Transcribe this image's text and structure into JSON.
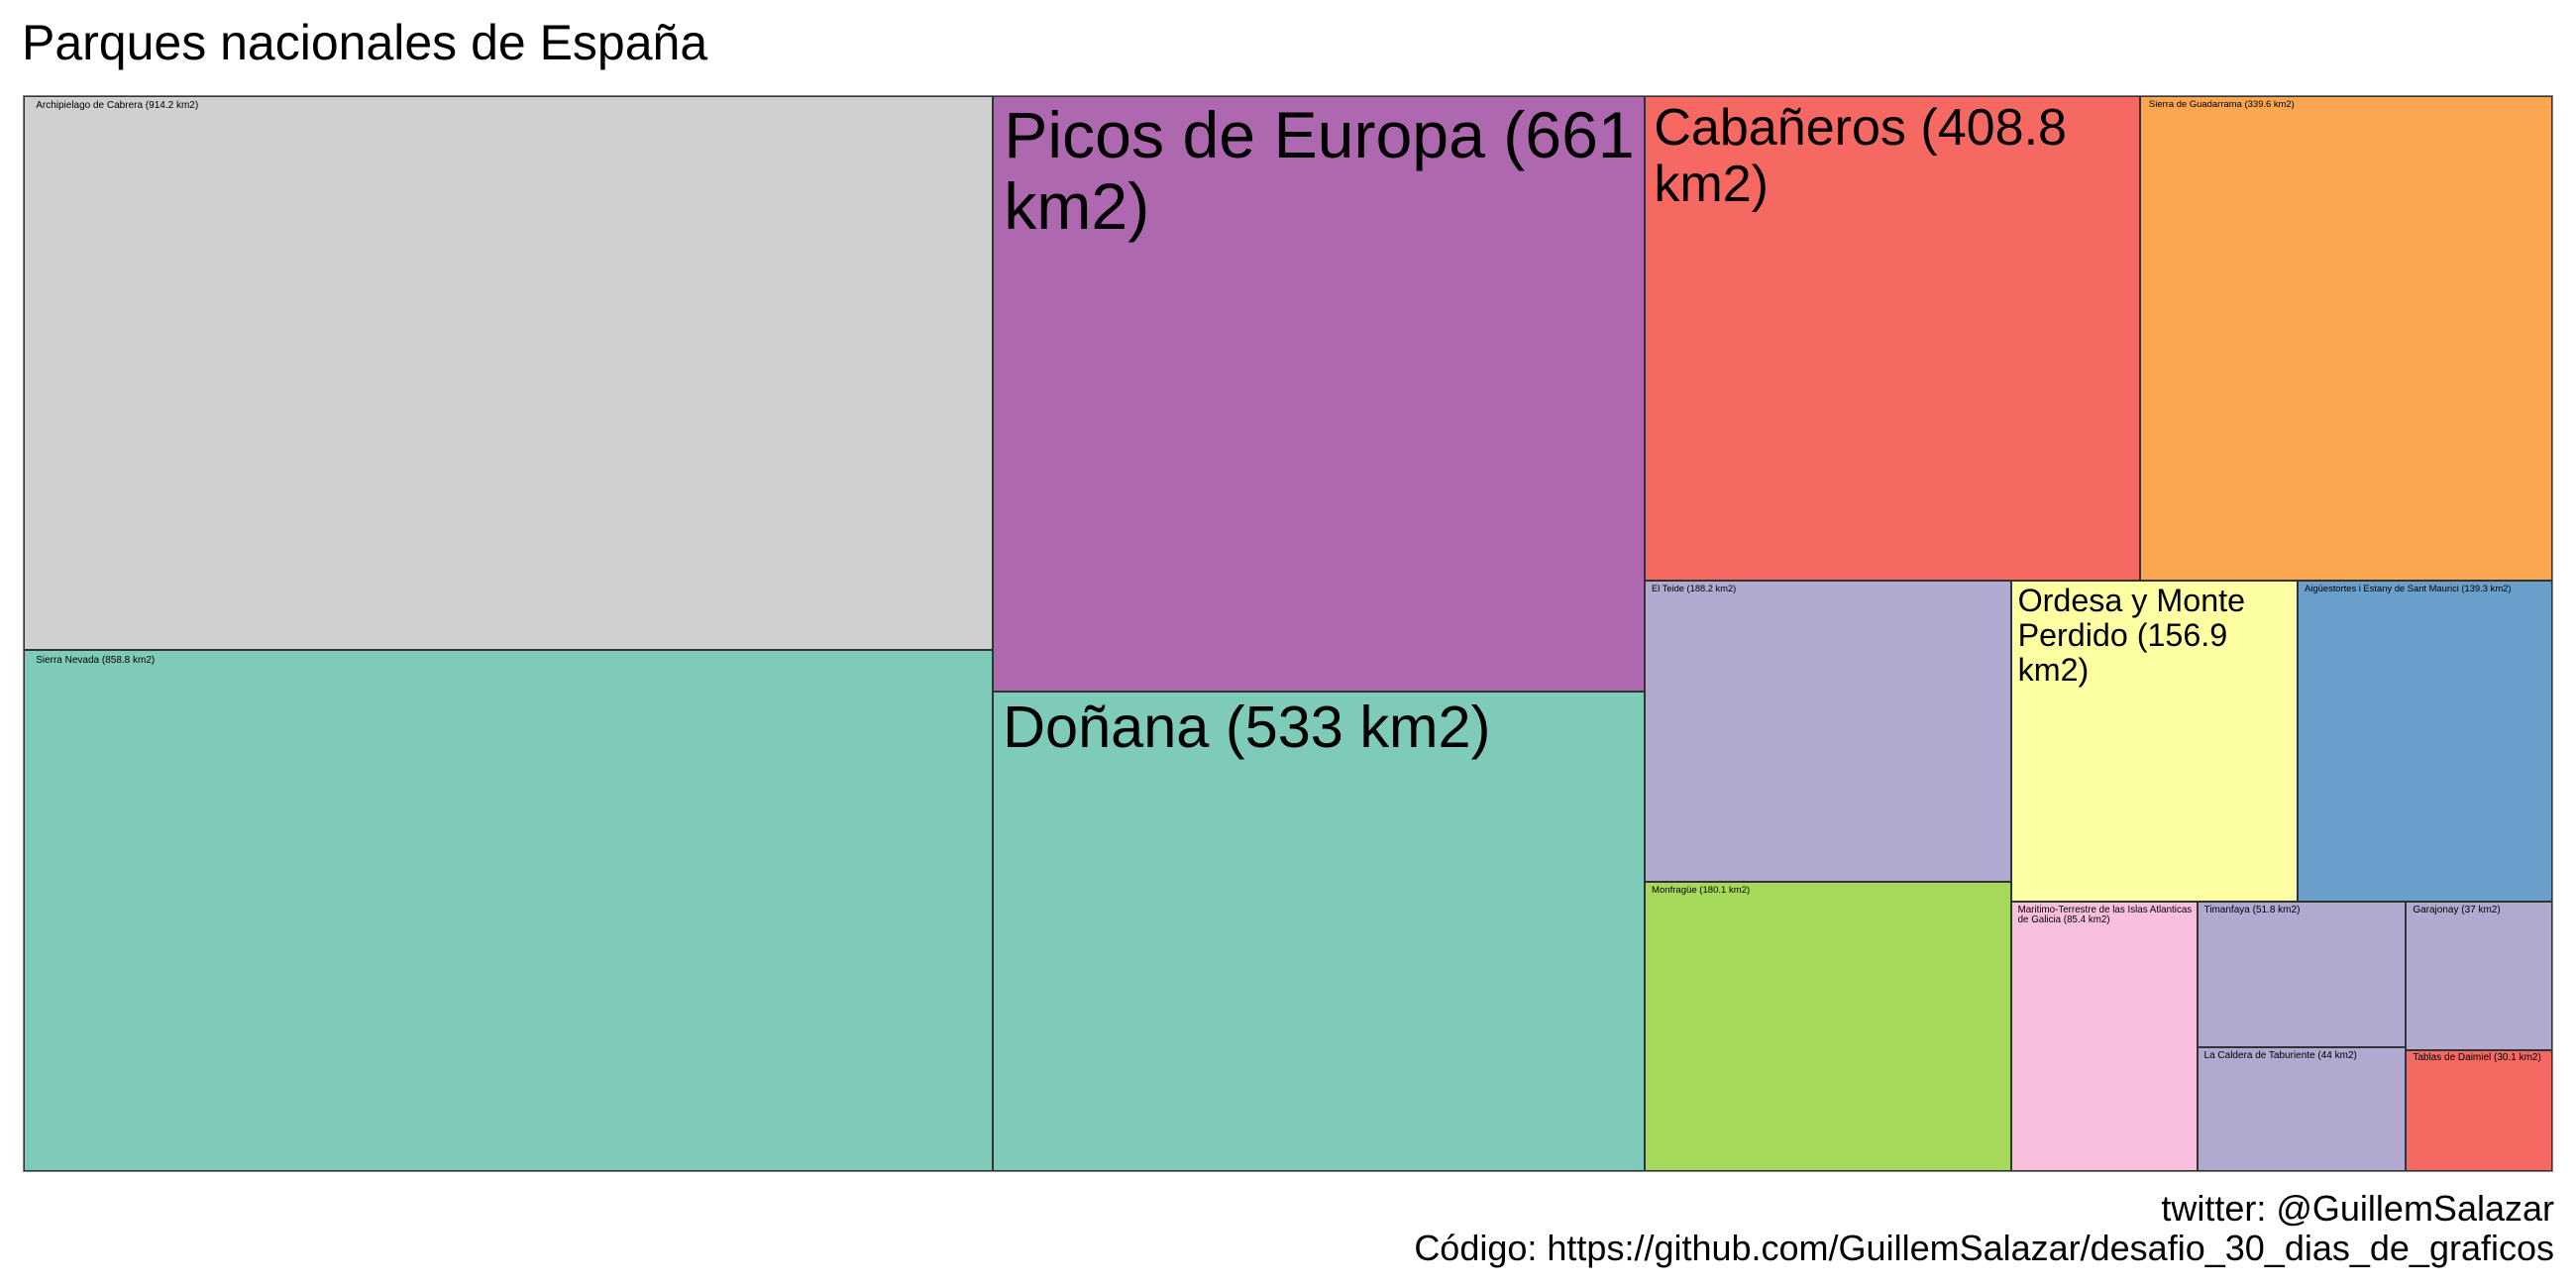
{
  "chart_data": {
    "type": "treemap",
    "title": "Parques nacionales de España",
    "unit": "km2",
    "caption_lines": [
      "twitter: @GuillemSalazar",
      "Código: https://github.com/GuillemSalazar/desafio_30_dias_de_graficos"
    ],
    "items": [
      {
        "label": "Archipielago de Cabrera (914.2 km2)",
        "name": "Archipielago de Cabrera",
        "value": 914.2,
        "color": "#d0d0d0"
      },
      {
        "label": "Sierra Nevada (858.8 km2)",
        "name": "Sierra Nevada",
        "value": 858.8,
        "color": "#7fcbba"
      },
      {
        "label": "Picos de Europa (661 km2)",
        "name": "Picos de Europa",
        "value": 661,
        "color": "#ae68b0"
      },
      {
        "label": "Doñana (533 km2)",
        "name": "Doñana",
        "value": 533,
        "color": "#7fcbba"
      },
      {
        "label": "Cabañeros (408.8 km2)",
        "name": "Cabañeros",
        "value": 408.8,
        "color": "#f66962"
      },
      {
        "label": "Sierra de Guadarrama (339.6 km2)",
        "name": "Sierra de Guadarrama",
        "value": 339.6,
        "color": "#fba650"
      },
      {
        "label": "El Teide (188.2 km2)",
        "name": "El Teide",
        "value": 188.2,
        "color": "#b0a9d0"
      },
      {
        "label": "Monfragüe (180.1 km2)",
        "name": "Monfragüe",
        "value": 180.1,
        "color": "#a6d95a"
      },
      {
        "label": "Ordesa y Monte Perdido (156.9 km2)",
        "name": "Ordesa y Monte Perdido",
        "value": 156.9,
        "color": "#fefea2"
      },
      {
        "label": "Aigüestortes i Estany de Sant Maurici (139.3 km2)",
        "name": "Aigüestortes i Estany de Sant Maurici",
        "value": 139.3,
        "color": "#6a9fcb"
      },
      {
        "label": "Maritimo-Terrestre de las Islas Atlanticas de Galicia (85.4 km2)",
        "name": "Maritimo-Terrestre de las Islas Atlanticas de Galicia",
        "value": 85.4,
        "color": "#f9bfdf"
      },
      {
        "label": "Timanfaya (51.8 km2)",
        "name": "Timanfaya",
        "value": 51.8,
        "color": "#b0a9d0"
      },
      {
        "label": "La Caldera de Taburiente (44 km2)",
        "name": "La Caldera de Taburiente",
        "value": 44,
        "color": "#b0a9d0"
      },
      {
        "label": "Garajonay (37 km2)",
        "name": "Garajonay",
        "value": 37,
        "color": "#b0a9d0"
      },
      {
        "label": "Tablas de Daimiel (30.1 km2)",
        "name": "Tablas de Daimiel",
        "value": 30.1,
        "color": "#f66962"
      }
    ]
  }
}
